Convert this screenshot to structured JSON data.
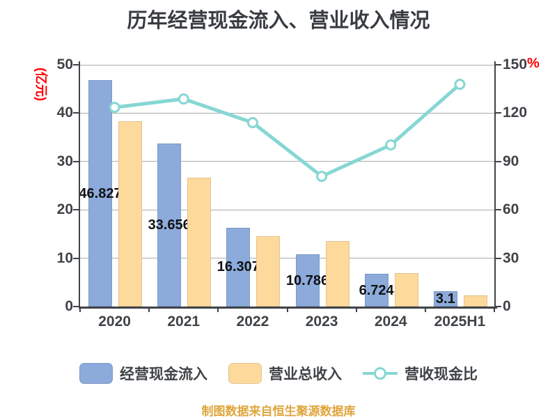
{
  "title": "历年经营现金流入、营业收入情况",
  "footer": "制图数据来自恒生聚源数据库",
  "colors": {
    "bar_cash_inflow": "#8cabdb",
    "bar_total_revenue": "#fdda9c",
    "ratio_line": "#86d7d3",
    "axis_text": "#3f4347",
    "unit_label_red": "#ff0000",
    "bar_value_label": "#111215",
    "gridline": "#abacae",
    "footer_text": "#dfa53c",
    "title_text": "#393d42"
  },
  "chart_data": {
    "type": "bar",
    "title": "历年经营现金流入、营业收入情况",
    "categories": [
      "2020",
      "2021",
      "2022",
      "2023",
      "2024",
      "2025H1"
    ],
    "series": [
      {
        "key": "cash_inflow",
        "name": "经营现金流入",
        "type": "bar",
        "axis": "left",
        "color": "#8cabdb",
        "values": [
          46.827,
          33.656,
          16.307,
          10.786,
          6.724,
          3.1
        ],
        "labels": [
          "46.827",
          "33.656",
          "16.307",
          "10.786",
          "6.724",
          "3.1"
        ]
      },
      {
        "key": "total_revenue",
        "name": "营业总收入",
        "type": "bar",
        "axis": "left",
        "color": "#fdda9c",
        "values": [
          38.3,
          26.6,
          14.5,
          13.5,
          6.9,
          2.3
        ]
      },
      {
        "key": "cash_to_revenue_ratio",
        "name": "营收现金比",
        "type": "line",
        "axis": "right",
        "color": "#86d7d3",
        "marker": "circle-open",
        "values": [
          123.6,
          128.8,
          114.1,
          80.8,
          100.3,
          137.9
        ]
      }
    ],
    "left_axis": {
      "unit": "(亿元)",
      "range": [
        0,
        50
      ],
      "ticks": [
        50,
        40,
        30,
        20,
        10,
        0
      ]
    },
    "right_axis": {
      "unit": "%",
      "range": [
        0,
        150
      ],
      "ticks": [
        150,
        120,
        90,
        60,
        30,
        0
      ]
    },
    "legend_position": "bottom",
    "grid": true
  }
}
